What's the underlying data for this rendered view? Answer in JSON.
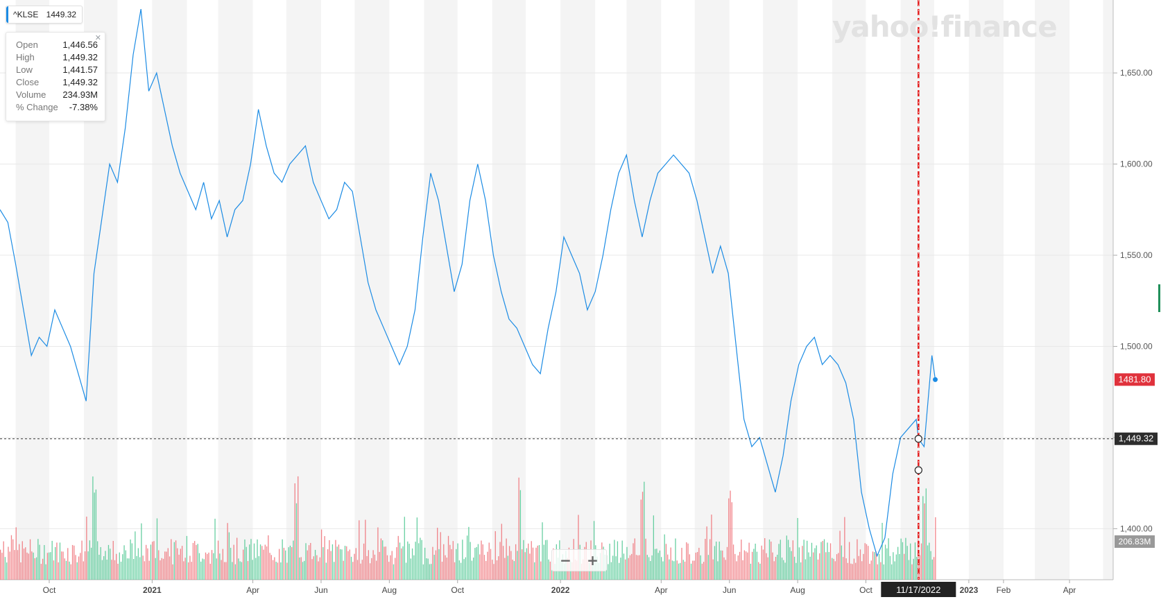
{
  "symbol_badge": {
    "symbol": "^KLSE",
    "price": "1449.32"
  },
  "tooltip": {
    "rows": [
      {
        "label": "Open",
        "value": "1,446.56"
      },
      {
        "label": "High",
        "value": "1,449.32"
      },
      {
        "label": "Low",
        "value": "1,441.57"
      },
      {
        "label": "Close",
        "value": "1,449.32"
      },
      {
        "label": "Volume",
        "value": "234.93M"
      },
      {
        "label": "% Change",
        "value": "-7.38%"
      }
    ]
  },
  "logo": {
    "text": "yahoo!finance",
    "icon": "yahoo-finance-logo"
  },
  "zoom": {
    "minus_label": "−",
    "plus_label": "+"
  },
  "colors": {
    "line": "#1b8be4",
    "volume_up": "#4cc790",
    "volume_down": "#ee6d74",
    "crosshair": "#e31d1d",
    "last_price": "#e0323c",
    "cursor_price": "#2d2d2d",
    "volume_label": "#999999"
  },
  "chart_data": {
    "type": "line",
    "x_start": "2020-08-18",
    "x_end": "2023-05-10",
    "ylim": [
      1372,
      1690
    ],
    "yticks": [
      1400,
      1450,
      1500,
      1550,
      1600,
      1650
    ],
    "ytick_labels": [
      "1,400.00",
      "1,450.00",
      "1,500.00",
      "1,550.00",
      "1,600.00",
      "1,650.00"
    ],
    "xticks": [
      {
        "date": "2020-10-01",
        "label": "Oct"
      },
      {
        "date": "2021-01-01",
        "label": "2021"
      },
      {
        "date": "2021-04-01",
        "label": "Apr"
      },
      {
        "date": "2021-06-01",
        "label": "Jun"
      },
      {
        "date": "2021-08-01",
        "label": "Aug"
      },
      {
        "date": "2021-10-01",
        "label": "Oct"
      },
      {
        "date": "2022-01-01",
        "label": "2022"
      },
      {
        "date": "2022-04-01",
        "label": "Apr"
      },
      {
        "date": "2022-06-01",
        "label": "Jun"
      },
      {
        "date": "2022-08-01",
        "label": "Aug"
      },
      {
        "date": "2022-10-01",
        "label": "Oct"
      },
      {
        "date": "2023-01-01",
        "label": "2023"
      },
      {
        "date": "2023-02-01",
        "label": "Feb"
      },
      {
        "date": "2023-04-01",
        "label": "Apr"
      }
    ],
    "series": [
      {
        "points": [
          [
            "2020-08-18",
            1575
          ],
          [
            "2020-08-25",
            1568
          ],
          [
            "2020-09-01",
            1545
          ],
          [
            "2020-09-08",
            1520
          ],
          [
            "2020-09-15",
            1495
          ],
          [
            "2020-09-22",
            1505
          ],
          [
            "2020-09-29",
            1500
          ],
          [
            "2020-10-06",
            1520
          ],
          [
            "2020-10-13",
            1510
          ],
          [
            "2020-10-20",
            1500
          ],
          [
            "2020-10-27",
            1485
          ],
          [
            "2020-11-03",
            1470
          ],
          [
            "2020-11-10",
            1540
          ],
          [
            "2020-11-17",
            1570
          ],
          [
            "2020-11-24",
            1600
          ],
          [
            "2020-12-01",
            1590
          ],
          [
            "2020-12-08",
            1620
          ],
          [
            "2020-12-15",
            1660
          ],
          [
            "2020-12-22",
            1685
          ],
          [
            "2020-12-29",
            1640
          ],
          [
            "2021-01-05",
            1650
          ],
          [
            "2021-01-12",
            1630
          ],
          [
            "2021-01-19",
            1610
          ],
          [
            "2021-01-26",
            1595
          ],
          [
            "2021-02-02",
            1585
          ],
          [
            "2021-02-09",
            1575
          ],
          [
            "2021-02-16",
            1590
          ],
          [
            "2021-02-23",
            1570
          ],
          [
            "2021-03-02",
            1580
          ],
          [
            "2021-03-09",
            1560
          ],
          [
            "2021-03-16",
            1575
          ],
          [
            "2021-03-23",
            1580
          ],
          [
            "2021-03-30",
            1600
          ],
          [
            "2021-04-06",
            1630
          ],
          [
            "2021-04-13",
            1610
          ],
          [
            "2021-04-20",
            1595
          ],
          [
            "2021-04-27",
            1590
          ],
          [
            "2021-05-04",
            1600
          ],
          [
            "2021-05-11",
            1605
          ],
          [
            "2021-05-18",
            1610
          ],
          [
            "2021-05-25",
            1590
          ],
          [
            "2021-06-01",
            1580
          ],
          [
            "2021-06-08",
            1570
          ],
          [
            "2021-06-15",
            1575
          ],
          [
            "2021-06-22",
            1590
          ],
          [
            "2021-06-29",
            1585
          ],
          [
            "2021-07-06",
            1560
          ],
          [
            "2021-07-13",
            1535
          ],
          [
            "2021-07-20",
            1520
          ],
          [
            "2021-07-27",
            1510
          ],
          [
            "2021-08-03",
            1500
          ],
          [
            "2021-08-10",
            1490
          ],
          [
            "2021-08-17",
            1500
          ],
          [
            "2021-08-24",
            1520
          ],
          [
            "2021-08-31",
            1560
          ],
          [
            "2021-09-07",
            1595
          ],
          [
            "2021-09-14",
            1580
          ],
          [
            "2021-09-21",
            1555
          ],
          [
            "2021-09-28",
            1530
          ],
          [
            "2021-10-05",
            1545
          ],
          [
            "2021-10-12",
            1580
          ],
          [
            "2021-10-19",
            1600
          ],
          [
            "2021-10-26",
            1580
          ],
          [
            "2021-11-02",
            1550
          ],
          [
            "2021-11-09",
            1530
          ],
          [
            "2021-11-16",
            1515
          ],
          [
            "2021-11-23",
            1510
          ],
          [
            "2021-11-30",
            1500
          ],
          [
            "2021-12-07",
            1490
          ],
          [
            "2021-12-14",
            1485
          ],
          [
            "2021-12-21",
            1510
          ],
          [
            "2021-12-28",
            1530
          ],
          [
            "2022-01-04",
            1560
          ],
          [
            "2022-01-11",
            1550
          ],
          [
            "2022-01-18",
            1540
          ],
          [
            "2022-01-25",
            1520
          ],
          [
            "2022-02-01",
            1530
          ],
          [
            "2022-02-08",
            1550
          ],
          [
            "2022-02-15",
            1575
          ],
          [
            "2022-02-22",
            1595
          ],
          [
            "2022-03-01",
            1605
          ],
          [
            "2022-03-08",
            1580
          ],
          [
            "2022-03-15",
            1560
          ],
          [
            "2022-03-22",
            1580
          ],
          [
            "2022-03-29",
            1595
          ],
          [
            "2022-04-05",
            1600
          ],
          [
            "2022-04-12",
            1605
          ],
          [
            "2022-04-19",
            1600
          ],
          [
            "2022-04-26",
            1595
          ],
          [
            "2022-05-03",
            1580
          ],
          [
            "2022-05-10",
            1560
          ],
          [
            "2022-05-17",
            1540
          ],
          [
            "2022-05-24",
            1555
          ],
          [
            "2022-05-31",
            1540
          ],
          [
            "2022-06-07",
            1500
          ],
          [
            "2022-06-14",
            1460
          ],
          [
            "2022-06-21",
            1445
          ],
          [
            "2022-06-28",
            1450
          ],
          [
            "2022-07-05",
            1435
          ],
          [
            "2022-07-12",
            1420
          ],
          [
            "2022-07-19",
            1440
          ],
          [
            "2022-07-26",
            1470
          ],
          [
            "2022-08-02",
            1490
          ],
          [
            "2022-08-09",
            1500
          ],
          [
            "2022-08-16",
            1505
          ],
          [
            "2022-08-23",
            1490
          ],
          [
            "2022-08-30",
            1495
          ],
          [
            "2022-09-06",
            1490
          ],
          [
            "2022-09-13",
            1480
          ],
          [
            "2022-09-20",
            1460
          ],
          [
            "2022-09-27",
            1420
          ],
          [
            "2022-10-04",
            1400
          ],
          [
            "2022-10-11",
            1385
          ],
          [
            "2022-10-18",
            1395
          ],
          [
            "2022-10-25",
            1430
          ],
          [
            "2022-11-01",
            1450
          ],
          [
            "2022-11-08",
            1455
          ],
          [
            "2022-11-15",
            1460
          ],
          [
            "2022-11-17",
            1449.32
          ],
          [
            "2022-11-22",
            1445
          ],
          [
            "2022-11-29",
            1495
          ],
          [
            "2022-12-02",
            1481.8
          ]
        ]
      }
    ],
    "volume": {
      "label": "206.83M",
      "points": [
        [
          "2020-11-10",
          1
        ],
        [
          "2021-05-10",
          1
        ],
        [
          "2021-11-25",
          1
        ],
        [
          "2022-03-15",
          1
        ],
        [
          "2022-06-01",
          1
        ],
        [
          "2022-11-22",
          1
        ]
      ]
    },
    "last_price": {
      "value": 1481.8,
      "label": "1481.80"
    },
    "crosshair": {
      "date": "2022-11-17",
      "date_label": "11/17/2022",
      "value": 1449.32,
      "value_label": "1,449.32"
    }
  }
}
